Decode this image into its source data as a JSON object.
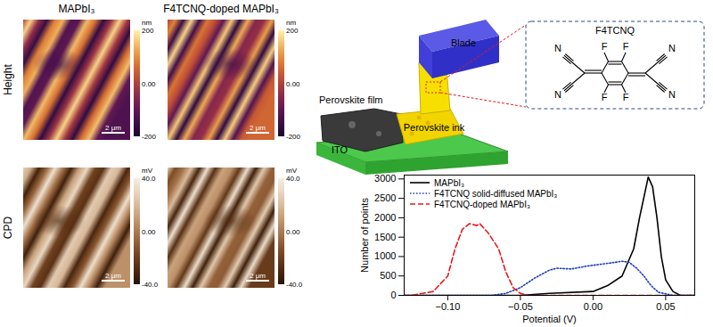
{
  "figure": {
    "maps": {
      "columns": [
        "MAPbI₃",
        "F4TCNQ-doped MAPbI₃"
      ],
      "rows": [
        {
          "label": "Height",
          "unit": "nm",
          "colorbar_range": [
            -200,
            200
          ],
          "colorbar_ticks": [
            {
              "value": 200,
              "label": "200"
            },
            {
              "value": 0,
              "label": "0.00"
            },
            {
              "value": -200,
              "label": "-200"
            }
          ]
        },
        {
          "label": "CPD",
          "unit": "mV",
          "colorbar_range": [
            -40,
            40
          ],
          "colorbar_ticks": [
            {
              "value": 40,
              "label": "40.0"
            },
            {
              "value": 0,
              "label": "0.00"
            },
            {
              "value": -40,
              "label": "-40.0"
            }
          ]
        }
      ],
      "scale_bar": "2 μm"
    },
    "schematic": {
      "labels": {
        "film": "Perovskite film",
        "blade": "Blade",
        "ink": "Perovskite ink",
        "substrate": "ITO"
      },
      "molecule": {
        "title": "F4TCNQ",
        "nitrogens": [
          "N",
          "N",
          "N",
          "N"
        ],
        "fluorines": [
          "F",
          "F",
          "F",
          "F"
        ]
      }
    }
  },
  "chart_data": {
    "type": "line",
    "x_label": "Potential (V)",
    "y_label": "Number of points",
    "xlim": [
      -0.13,
      0.07
    ],
    "ylim": [
      0,
      3100
    ],
    "xticks": [
      {
        "value": -0.1,
        "label": "−0.10"
      },
      {
        "value": -0.05,
        "label": "−0.05"
      },
      {
        "value": 0,
        "label": "0.00"
      },
      {
        "value": 0.05,
        "label": "0.05"
      }
    ],
    "yticks": [
      0,
      500,
      1000,
      1500,
      2000,
      2500,
      3000
    ],
    "legend": "upper left",
    "grid": false,
    "series": [
      {
        "name": "MAPbI₃",
        "color": "#000000",
        "line_style": "solid",
        "x": [
          -0.13,
          -0.05,
          -0.03,
          0,
          0.01,
          0.02,
          0.028,
          0.032,
          0.036,
          0.038,
          0.041,
          0.044,
          0.047,
          0.05,
          0.055,
          0.06,
          0.07
        ],
        "values": [
          0,
          0,
          50,
          100,
          250,
          500,
          1200,
          2000,
          2700,
          3050,
          2800,
          2000,
          1000,
          400,
          100,
          0,
          0
        ]
      },
      {
        "name": "F4TCNQ solid-diffused MAPbI₃",
        "color": "#1f3fbf",
        "line_style": "dotted",
        "x": [
          -0.13,
          -0.07,
          -0.06,
          -0.05,
          -0.04,
          -0.03,
          -0.025,
          -0.015,
          -0.005,
          0.005,
          0.015,
          0.02,
          0.025,
          0.03,
          0.035,
          0.04,
          0.045,
          0.055,
          0.07
        ],
        "values": [
          0,
          0,
          50,
          200,
          450,
          650,
          700,
          680,
          750,
          800,
          850,
          880,
          850,
          700,
          500,
          250,
          80,
          0,
          0
        ]
      },
      {
        "name": "F4TCNQ-doped MAPbI₃",
        "color": "#e41a1c",
        "line_style": "dashed",
        "x": [
          -0.13,
          -0.125,
          -0.11,
          -0.1,
          -0.095,
          -0.09,
          -0.085,
          -0.08,
          -0.078,
          -0.072,
          -0.065,
          -0.06,
          -0.055,
          -0.05,
          -0.045,
          0.07
        ],
        "values": [
          0,
          0,
          100,
          500,
          1200,
          1700,
          1850,
          1800,
          1850,
          1600,
          1200,
          600,
          200,
          50,
          0,
          0
        ]
      }
    ]
  }
}
